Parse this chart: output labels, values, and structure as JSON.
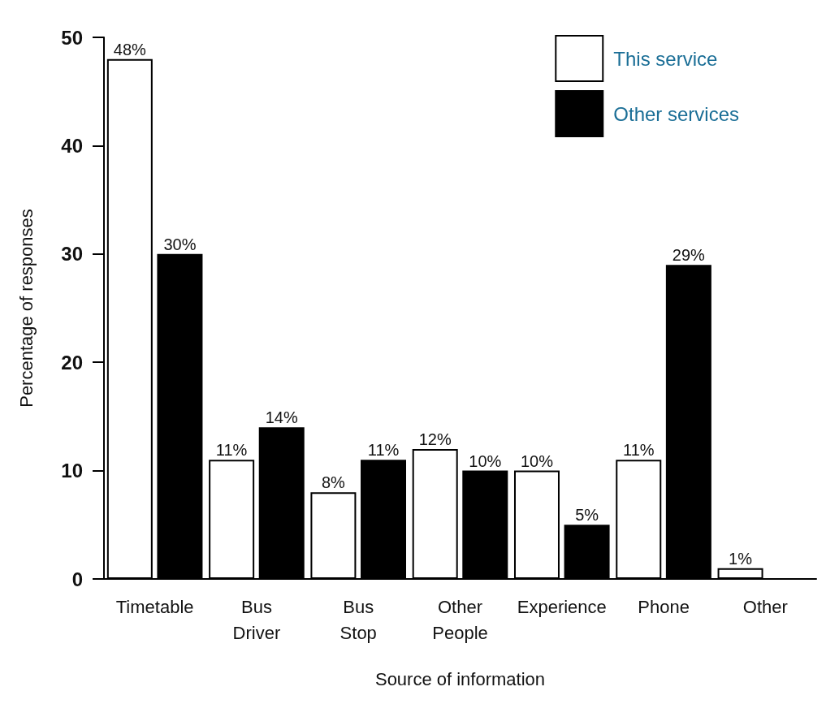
{
  "chart_data": {
    "type": "bar",
    "xlabel": "Source of information",
    "ylabel": "Percentage of responses",
    "categories": [
      "Timetable",
      "Bus\nDriver",
      "Bus\nStop",
      "Other\nPeople",
      "Experience",
      "Phone",
      "Other"
    ],
    "series": [
      {
        "name": "This service",
        "color": "#ffffff",
        "values": [
          48,
          11,
          8,
          12,
          10,
          11,
          1
        ],
        "value_labels": [
          "48%",
          "11%",
          "8%",
          "12%",
          "10%",
          "11%",
          "1%"
        ]
      },
      {
        "name": "Other services",
        "color": "#000000",
        "values": [
          30,
          14,
          11,
          10,
          5,
          29,
          null
        ],
        "value_labels": [
          "30%",
          "14%",
          "11%",
          "10%",
          "5%",
          "29%",
          null
        ]
      }
    ],
    "ylim": [
      0,
      50
    ],
    "yticks": [
      0,
      10,
      20,
      30,
      40,
      50
    ],
    "grid": false,
    "legend": "top right"
  }
}
